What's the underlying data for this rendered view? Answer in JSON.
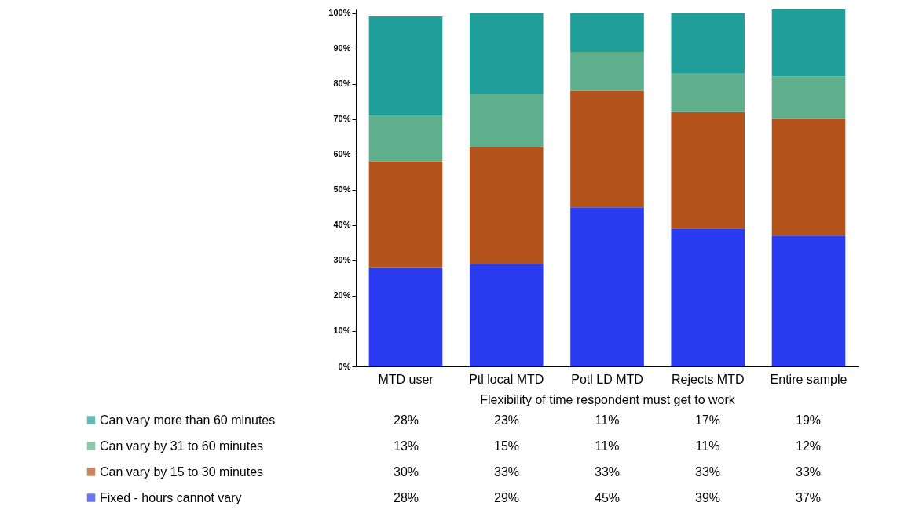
{
  "chart_data": {
    "type": "bar",
    "stacked": true,
    "xlabel": "Flexibility of time respondent must get to work",
    "categories": [
      "MTD user",
      "Ptl local MTD",
      "Potl LD MTD",
      "Rejects MTD",
      "Entire sample"
    ],
    "ylim": [
      0,
      101
    ],
    "yticks": [
      {
        "value": 0,
        "label": "0%"
      },
      {
        "value": 10,
        "label": "10%"
      },
      {
        "value": 20,
        "label": "20%"
      },
      {
        "value": 30,
        "label": "30%"
      },
      {
        "value": 40,
        "label": "40%"
      },
      {
        "value": 50,
        "label": "50%"
      },
      {
        "value": 60,
        "label": "60%"
      },
      {
        "value": 70,
        "label": "70%"
      },
      {
        "value": 80,
        "label": "80%"
      },
      {
        "value": 90,
        "label": "90%"
      },
      {
        "value": 100,
        "label": "100%"
      }
    ],
    "series": [
      {
        "name": "Fixed - hours cannot vary",
        "color": "#2a3cf0",
        "values": [
          28,
          29,
          45,
          39,
          37
        ],
        "value_labels": [
          "28%",
          "29%",
          "45%",
          "39%",
          "37%"
        ]
      },
      {
        "name": "Can vary by 15 to 30 minutes",
        "color": "#b4521c",
        "values": [
          30,
          33,
          33,
          33,
          33
        ],
        "value_labels": [
          "30%",
          "33%",
          "33%",
          "33%",
          "33%"
        ]
      },
      {
        "name": "Can vary by 31 to 60 minutes",
        "color": "#5fae8c",
        "values": [
          13,
          15,
          11,
          11,
          12
        ],
        "value_labels": [
          "13%",
          "15%",
          "11%",
          "11%",
          "12%"
        ]
      },
      {
        "name": "Can vary more than 60 minutes",
        "color": "#1f9e9a",
        "values": [
          28,
          23,
          11,
          17,
          19
        ],
        "value_labels": [
          "28%",
          "23%",
          "11%",
          "17%",
          "19%"
        ]
      }
    ],
    "legend": "bottom",
    "grid": false
  }
}
